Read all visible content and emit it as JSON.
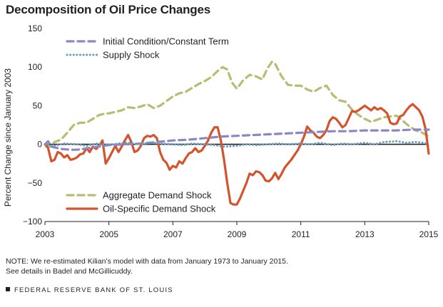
{
  "chart_data": {
    "type": "line",
    "title": "Decomposition of Oil Price Changes",
    "xlabel": "",
    "ylabel": "Percent Change since January 2003",
    "xlim": [
      2003,
      2015
    ],
    "ylim": [
      -100,
      150
    ],
    "x_ticks": [
      "2003",
      "2005",
      "2007",
      "2009",
      "2011",
      "2013",
      "2015"
    ],
    "y_ticks": [
      "150",
      "100",
      "50",
      "0",
      "−50",
      "−100"
    ],
    "zero_line": true,
    "grid": false,
    "series": [
      {
        "name": "Initial Condition/Constant Term",
        "color": "#8b86c4",
        "style": "dashed",
        "points": [
          [
            2003.0,
            0
          ],
          [
            2003.1,
            4
          ],
          [
            2003.2,
            -3
          ],
          [
            2003.5,
            -6
          ],
          [
            2003.8,
            -7
          ],
          [
            2004.0,
            -7
          ],
          [
            2004.2,
            -6
          ],
          [
            2004.5,
            -4
          ],
          [
            2004.8,
            -2
          ],
          [
            2005.0,
            -1
          ],
          [
            2005.5,
            0
          ],
          [
            2006.0,
            1
          ],
          [
            2006.5,
            3
          ],
          [
            2007.0,
            5
          ],
          [
            2007.5,
            6
          ],
          [
            2008.0,
            8
          ],
          [
            2008.5,
            10
          ],
          [
            2009.0,
            11
          ],
          [
            2009.5,
            12
          ],
          [
            2010.0,
            13
          ],
          [
            2010.5,
            14
          ],
          [
            2011.0,
            15
          ],
          [
            2011.5,
            16
          ],
          [
            2012.0,
            17
          ],
          [
            2012.5,
            17
          ],
          [
            2013.0,
            18
          ],
          [
            2013.5,
            18
          ],
          [
            2014.0,
            18
          ],
          [
            2014.5,
            19
          ],
          [
            2015.0,
            19
          ]
        ]
      },
      {
        "name": "Supply Shock",
        "color": "#6a9dbb",
        "style": "dotted",
        "points": [
          [
            2003.0,
            0
          ],
          [
            2003.3,
            -2
          ],
          [
            2003.6,
            1
          ],
          [
            2004.0,
            0
          ],
          [
            2004.3,
            -2
          ],
          [
            2004.6,
            1
          ],
          [
            2005.0,
            -1
          ],
          [
            2005.3,
            1
          ],
          [
            2005.6,
            2
          ],
          [
            2006.0,
            0
          ],
          [
            2006.3,
            2
          ],
          [
            2006.6,
            1
          ],
          [
            2007.0,
            0
          ],
          [
            2007.3,
            -1
          ],
          [
            2007.6,
            1
          ],
          [
            2008.0,
            0
          ],
          [
            2008.3,
            -1
          ],
          [
            2008.6,
            -3
          ],
          [
            2009.0,
            -2
          ],
          [
            2009.3,
            0
          ],
          [
            2009.6,
            -1
          ],
          [
            2010.0,
            0
          ],
          [
            2010.3,
            1
          ],
          [
            2010.6,
            0
          ],
          [
            2011.0,
            1
          ],
          [
            2011.3,
            0
          ],
          [
            2011.6,
            2
          ],
          [
            2012.0,
            -1
          ],
          [
            2012.3,
            1
          ],
          [
            2012.6,
            0
          ],
          [
            2013.0,
            2
          ],
          [
            2013.3,
            0
          ],
          [
            2013.6,
            3
          ],
          [
            2014.0,
            4
          ],
          [
            2014.3,
            2
          ],
          [
            2014.6,
            3
          ],
          [
            2015.0,
            1
          ]
        ]
      },
      {
        "name": "Aggregate Demand Shock",
        "color": "#b9bc72",
        "style": "dashed",
        "points": [
          [
            2003.0,
            0
          ],
          [
            2003.15,
            -3
          ],
          [
            2003.3,
            3
          ],
          [
            2003.5,
            6
          ],
          [
            2003.7,
            15
          ],
          [
            2003.9,
            25
          ],
          [
            2004.1,
            28
          ],
          [
            2004.3,
            28
          ],
          [
            2004.5,
            33
          ],
          [
            2004.7,
            38
          ],
          [
            2004.9,
            40
          ],
          [
            2005.0,
            40
          ],
          [
            2005.2,
            42
          ],
          [
            2005.4,
            44
          ],
          [
            2005.6,
            48
          ],
          [
            2005.8,
            47
          ],
          [
            2006.0,
            49
          ],
          [
            2006.2,
            52
          ],
          [
            2006.4,
            47
          ],
          [
            2006.6,
            50
          ],
          [
            2006.8,
            56
          ],
          [
            2007.0,
            62
          ],
          [
            2007.2,
            66
          ],
          [
            2007.4,
            68
          ],
          [
            2007.6,
            73
          ],
          [
            2007.8,
            78
          ],
          [
            2008.0,
            82
          ],
          [
            2008.2,
            87
          ],
          [
            2008.4,
            95
          ],
          [
            2008.55,
            100
          ],
          [
            2008.7,
            97
          ],
          [
            2008.85,
            80
          ],
          [
            2009.0,
            72
          ],
          [
            2009.2,
            83
          ],
          [
            2009.4,
            90
          ],
          [
            2009.6,
            88
          ],
          [
            2009.8,
            84
          ],
          [
            2009.95,
            98
          ],
          [
            2010.1,
            107
          ],
          [
            2010.2,
            104
          ],
          [
            2010.4,
            88
          ],
          [
            2010.6,
            77
          ],
          [
            2010.8,
            76
          ],
          [
            2011.0,
            76
          ],
          [
            2011.2,
            71
          ],
          [
            2011.4,
            68
          ],
          [
            2011.6,
            73
          ],
          [
            2011.8,
            76
          ],
          [
            2012.0,
            64
          ],
          [
            2012.2,
            57
          ],
          [
            2012.4,
            55
          ],
          [
            2012.6,
            45
          ],
          [
            2012.8,
            38
          ],
          [
            2013.0,
            33
          ],
          [
            2013.2,
            29
          ],
          [
            2013.4,
            32
          ],
          [
            2013.6,
            35
          ],
          [
            2013.8,
            36
          ],
          [
            2014.0,
            37
          ],
          [
            2014.2,
            30
          ],
          [
            2014.4,
            23
          ],
          [
            2014.6,
            18
          ],
          [
            2014.8,
            15
          ],
          [
            2015.0,
            10
          ]
        ]
      },
      {
        "name": "Oil-Specific Demand Shock",
        "color": "#d4532c",
        "style": "solid",
        "points": [
          [
            2003.0,
            0
          ],
          [
            2003.1,
            -5
          ],
          [
            2003.2,
            -22
          ],
          [
            2003.3,
            -20
          ],
          [
            2003.4,
            -10
          ],
          [
            2003.5,
            -12
          ],
          [
            2003.6,
            -17
          ],
          [
            2003.7,
            -14
          ],
          [
            2003.8,
            -20
          ],
          [
            2003.9,
            -19
          ],
          [
            2004.0,
            -17
          ],
          [
            2004.1,
            -13
          ],
          [
            2004.2,
            -12
          ],
          [
            2004.3,
            -5
          ],
          [
            2004.4,
            -10
          ],
          [
            2004.5,
            -3
          ],
          [
            2004.6,
            -6
          ],
          [
            2004.7,
            -2
          ],
          [
            2004.8,
            5
          ],
          [
            2004.9,
            -25
          ],
          [
            2005.0,
            -18
          ],
          [
            2005.1,
            -10
          ],
          [
            2005.2,
            -2
          ],
          [
            2005.3,
            -10
          ],
          [
            2005.4,
            -3
          ],
          [
            2005.5,
            5
          ],
          [
            2005.6,
            12
          ],
          [
            2005.7,
            3
          ],
          [
            2005.8,
            -10
          ],
          [
            2005.9,
            -8
          ],
          [
            2006.0,
            -2
          ],
          [
            2006.1,
            8
          ],
          [
            2006.2,
            11
          ],
          [
            2006.3,
            10
          ],
          [
            2006.4,
            12
          ],
          [
            2006.5,
            8
          ],
          [
            2006.6,
            -10
          ],
          [
            2006.7,
            -20
          ],
          [
            2006.8,
            -24
          ],
          [
            2006.9,
            -33
          ],
          [
            2007.0,
            -28
          ],
          [
            2007.1,
            -30
          ],
          [
            2007.2,
            -22
          ],
          [
            2007.3,
            -25
          ],
          [
            2007.4,
            -18
          ],
          [
            2007.5,
            -12
          ],
          [
            2007.6,
            -10
          ],
          [
            2007.7,
            -5
          ],
          [
            2007.8,
            -10
          ],
          [
            2007.9,
            -8
          ],
          [
            2008.0,
            -2
          ],
          [
            2008.1,
            5
          ],
          [
            2008.2,
            15
          ],
          [
            2008.3,
            22
          ],
          [
            2008.4,
            22
          ],
          [
            2008.5,
            5
          ],
          [
            2008.6,
            -20
          ],
          [
            2008.7,
            -50
          ],
          [
            2008.8,
            -76
          ],
          [
            2008.9,
            -78
          ],
          [
            2009.0,
            -78
          ],
          [
            2009.1,
            -70
          ],
          [
            2009.2,
            -60
          ],
          [
            2009.3,
            -50
          ],
          [
            2009.4,
            -38
          ],
          [
            2009.5,
            -40
          ],
          [
            2009.6,
            -35
          ],
          [
            2009.7,
            -36
          ],
          [
            2009.8,
            -40
          ],
          [
            2009.9,
            -47
          ],
          [
            2010.0,
            -48
          ],
          [
            2010.1,
            -44
          ],
          [
            2010.2,
            -37
          ],
          [
            2010.3,
            -45
          ],
          [
            2010.4,
            -38
          ],
          [
            2010.5,
            -30
          ],
          [
            2010.6,
            -25
          ],
          [
            2010.7,
            -20
          ],
          [
            2010.8,
            -14
          ],
          [
            2010.9,
            -8
          ],
          [
            2011.0,
            0
          ],
          [
            2011.1,
            10
          ],
          [
            2011.2,
            23
          ],
          [
            2011.3,
            18
          ],
          [
            2011.4,
            15
          ],
          [
            2011.5,
            10
          ],
          [
            2011.6,
            8
          ],
          [
            2011.7,
            12
          ],
          [
            2011.8,
            18
          ],
          [
            2011.9,
            30
          ],
          [
            2012.0,
            35
          ],
          [
            2012.1,
            33
          ],
          [
            2012.2,
            28
          ],
          [
            2012.3,
            22
          ],
          [
            2012.4,
            25
          ],
          [
            2012.5,
            34
          ],
          [
            2012.6,
            43
          ],
          [
            2012.7,
            42
          ],
          [
            2012.8,
            44
          ],
          [
            2012.9,
            47
          ],
          [
            2013.0,
            50
          ],
          [
            2013.1,
            47
          ],
          [
            2013.2,
            44
          ],
          [
            2013.3,
            48
          ],
          [
            2013.4,
            45
          ],
          [
            2013.5,
            47
          ],
          [
            2013.6,
            44
          ],
          [
            2013.7,
            40
          ],
          [
            2013.8,
            28
          ],
          [
            2013.9,
            26
          ],
          [
            2014.0,
            27
          ],
          [
            2014.1,
            36
          ],
          [
            2014.2,
            38
          ],
          [
            2014.3,
            44
          ],
          [
            2014.4,
            49
          ],
          [
            2014.5,
            52
          ],
          [
            2014.6,
            48
          ],
          [
            2014.7,
            44
          ],
          [
            2014.8,
            36
          ],
          [
            2014.9,
            20
          ],
          [
            2015.0,
            -12
          ]
        ]
      }
    ],
    "legends": [
      {
        "position": "top-left",
        "entries": [
          "Initial Condition/Constant Term",
          "Supply Shock"
        ]
      },
      {
        "position": "bottom-left",
        "entries": [
          "Aggregate Demand Shock",
          "Oil-Specific Demand Shock"
        ]
      }
    ]
  },
  "note": {
    "line1": "NOTE: We re-estimated Kilian’s model with data from January 1973 to January 2015.",
    "line2": "See details in Badel and McGillicuddy."
  },
  "source": "FEDERAL RESERVE BANK OF ST. LOUIS"
}
